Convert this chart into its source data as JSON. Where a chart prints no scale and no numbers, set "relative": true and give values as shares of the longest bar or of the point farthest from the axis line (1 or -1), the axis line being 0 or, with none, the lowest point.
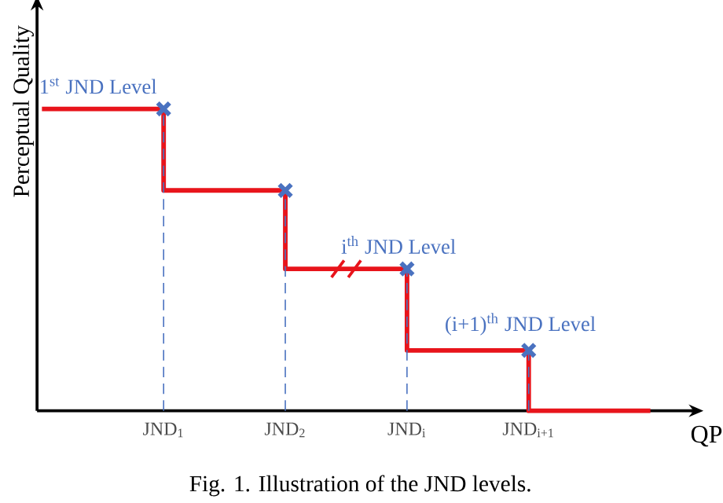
{
  "chart_data": {
    "type": "step",
    "relative": true,
    "xlabel": "QP",
    "ylabel": "Perceptual Quality",
    "categories": [
      null,
      "JND$_{1}$",
      "JND$_{2}$",
      "JND$_{i}$",
      "JND$_{i+1}$",
      null
    ],
    "series": [
      {
        "color": "#e8141b",
        "values": [
          1,
          0.73,
          0.47,
          0.2,
          0,
          0
        ]
      },
      {
        "type": "lollipop",
        "color": "#4a72c0",
        "values": [
          null,
          1,
          0.73,
          0.47,
          0.2,
          null
        ],
        "marker": "cross",
        "line_style": "dashed"
      }
    ],
    "annotations": [
      {
        "text": "1$^{st}$ JND Level",
        "x": "JND$_{1}$",
        "y": 1
      },
      {
        "text": "i$^{th}$ JND Level",
        "x": "JND$_{i}$",
        "y": 0.47
      },
      {
        "text": "(i+1)$^{th}$ JND Level",
        "x": "JND$_{i+1}$",
        "y": 0.2
      },
      "Fig. 1. Illustration of the JND levels."
    ]
  }
}
